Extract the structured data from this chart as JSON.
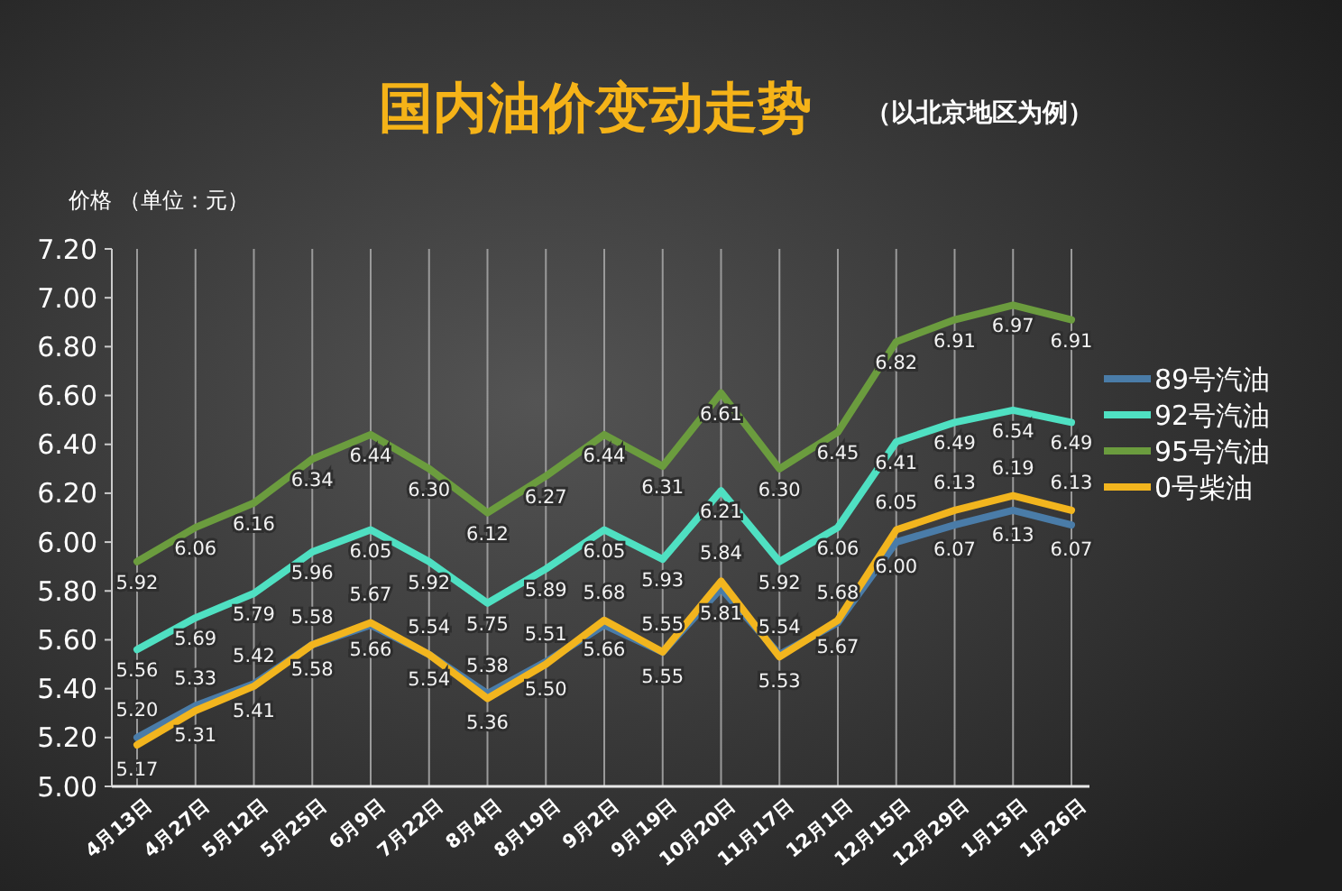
{
  "chart_data": {
    "type": "line",
    "title": "国内油价变动走势",
    "subtitle": "（以北京地区为例）",
    "ylabel": "价格 （单位：元）",
    "categories": [
      "4月13日",
      "4月27日",
      "5月12日",
      "5月25日",
      "6月9日",
      "7月22日",
      "8月4日",
      "8月19日",
      "9月2日",
      "9月19日",
      "10月20日",
      "11月17日",
      "12月1日",
      "12月15日",
      "12月29日",
      "1月13日",
      "1月26日"
    ],
    "ylim": [
      5,
      7.2
    ],
    "yticks": [
      {
        "value": 5,
        "label": "5.00"
      },
      {
        "value": 5.2,
        "label": "5.20"
      },
      {
        "value": 5.4,
        "label": "5.40"
      },
      {
        "value": 5.6,
        "label": "5.60"
      },
      {
        "value": 5.8,
        "label": "5.80"
      },
      {
        "value": 6,
        "label": "6.00"
      },
      {
        "value": 6.2,
        "label": "6.20"
      },
      {
        "value": 6.4,
        "label": "6.40"
      },
      {
        "value": 6.6,
        "label": "6.60"
      },
      {
        "value": 6.8,
        "label": "6.80"
      },
      {
        "value": 7,
        "label": "7.00"
      },
      {
        "value": 7.2,
        "label": "7.20"
      }
    ],
    "grid": "x",
    "legend": "right",
    "marker": "none",
    "line_style": "solid",
    "series": [
      {
        "name": "89号汽油",
        "color": "#4a7ca8",
        "values": [
          5.2,
          5.33,
          5.42,
          5.58,
          5.66,
          5.54,
          5.38,
          5.51,
          5.66,
          5.55,
          5.81,
          5.54,
          5.67,
          6.0,
          6.07,
          6.13,
          6.07
        ],
        "value_labels": [
          "5.20",
          "5.33",
          "5.42",
          "5.58",
          "5.66",
          "5.54",
          "5.38",
          "5.51",
          "5.66",
          "5.55",
          "5.81",
          "5.54",
          "5.67",
          "6.00",
          "6.07",
          "6.13",
          "6.07"
        ]
      },
      {
        "name": "92号汽油",
        "color": "#4fe0c2",
        "values": [
          5.56,
          5.69,
          5.79,
          5.96,
          6.05,
          5.92,
          5.75,
          5.89,
          6.05,
          5.93,
          6.21,
          5.92,
          6.06,
          6.41,
          6.49,
          6.54,
          6.49
        ],
        "value_labels": [
          "5.56",
          "5.69",
          "5.79",
          "5.96",
          "6.05",
          "5.92",
          "5.75",
          "5.89",
          "6.05",
          "5.93",
          "6.21",
          "5.92",
          "6.06",
          "6.41",
          "6.49",
          "6.54",
          "6.49"
        ]
      },
      {
        "name": "95号汽油",
        "color": "#6b9c3e",
        "values": [
          5.92,
          6.06,
          6.16,
          6.34,
          6.44,
          6.3,
          6.12,
          6.27,
          6.44,
          6.31,
          6.61,
          6.3,
          6.45,
          6.82,
          6.91,
          6.97,
          6.91
        ],
        "value_labels": [
          "5.92",
          "6.06",
          "6.16",
          "6.34",
          "6.44",
          "6.30",
          "6.12",
          "6.27",
          "6.44",
          "6.31",
          "6.61",
          "6.30",
          "6.45",
          "6.82",
          "6.91",
          "6.97",
          "6.91"
        ]
      },
      {
        "name": "0号柴油",
        "color": "#f2b51e",
        "values": [
          5.17,
          5.31,
          5.41,
          5.58,
          5.67,
          5.54,
          5.36,
          5.5,
          5.68,
          5.55,
          5.84,
          5.53,
          5.68,
          6.05,
          6.13,
          6.19,
          6.13
        ],
        "value_labels": [
          "5.17",
          "5.31",
          "5.41",
          "5.58",
          "5.67",
          "5.54",
          "5.36",
          "5.50",
          "5.68",
          "5.55",
          "5.84",
          "5.53",
          "5.68",
          "6.05",
          "6.13",
          "6.19",
          "6.13"
        ]
      }
    ]
  }
}
